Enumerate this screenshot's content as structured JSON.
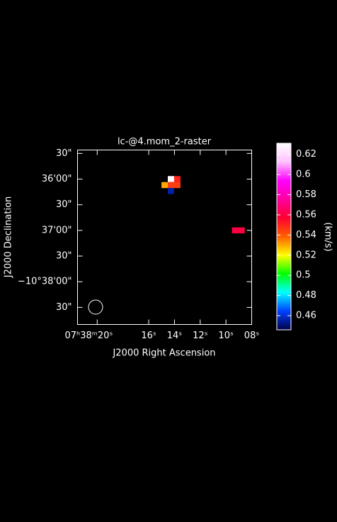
{
  "chart_data": {
    "type": "raster",
    "title": "lc-@4.mom_2-raster",
    "xlabel": "J2000 Right Ascension",
    "ylabel": "J2000 Declination",
    "colorbar_label": "(km/s)",
    "xlim": [
      21.53,
      8.0
    ],
    "xticks": [
      {
        "value": 20,
        "label": "07ʰ38ᵐ20ˢ"
      },
      {
        "value": 16,
        "label": "16ˢ"
      },
      {
        "value": 14,
        "label": "14ˢ"
      },
      {
        "value": 12,
        "label": "12ˢ"
      },
      {
        "value": 10,
        "label": "10ˢ"
      },
      {
        "value": 8,
        "label": "08ˢ"
      }
    ],
    "ylim": [
      -38330,
      -38126
    ],
    "yticks": [
      {
        "value": -38130,
        "label": "30\""
      },
      {
        "value": -38160,
        "label": "36'00\""
      },
      {
        "value": -38190,
        "label": "30\""
      },
      {
        "value": -38220,
        "label": "37'00\""
      },
      {
        "value": -38250,
        "label": "30\""
      },
      {
        "value": -38280,
        "label": "−10°38'00\""
      },
      {
        "value": -38310,
        "label": "30\""
      }
    ],
    "x": [
      14.27,
      13.78,
      14.76,
      14.27,
      13.78,
      14.27,
      9.28,
      8.79
    ],
    "y": [
      -38160,
      -38160,
      -38167,
      -38167,
      -38167,
      -38174,
      -38220,
      -38220
    ],
    "values": [
      0.63,
      0.55,
      0.53,
      0.545,
      0.545,
      0.455,
      0.56,
      0.56
    ],
    "clim": [
      0.446,
      0.631
    ],
    "cticks": [
      0.46,
      0.48,
      0.5,
      0.52,
      0.54,
      0.56,
      0.58,
      0.6,
      0.62
    ],
    "colormap": [
      "#00004a",
      "#0040ff",
      "#00ffff",
      "#00ff00",
      "#ffff00",
      "#ff6000",
      "#ff0030",
      "#ff00a0",
      "#ff00ff",
      "#ffc0ff",
      "#ffffff"
    ]
  }
}
